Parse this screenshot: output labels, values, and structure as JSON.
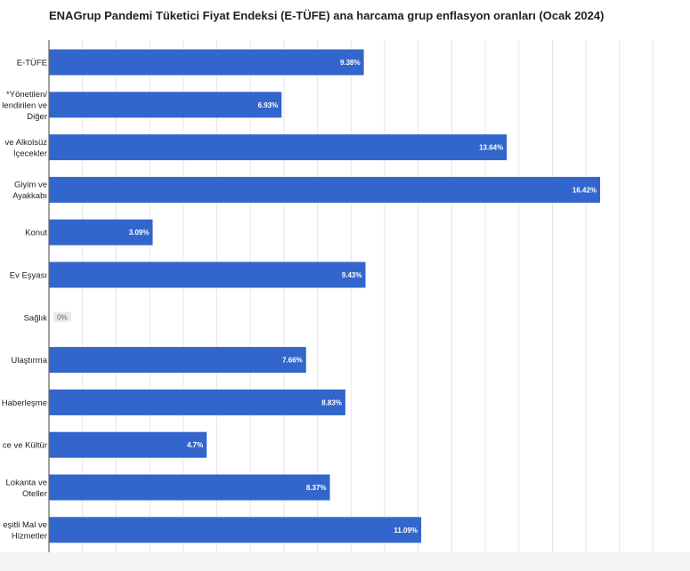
{
  "chart_data": {
    "type": "bar",
    "orientation": "horizontal",
    "title": "ENAGrup Pandemi Tüketici Fiyat Endeksi (E-TÜFE) ana harcama grup enflasyon oranları (Ocak 2024)",
    "categories": [
      [
        "E-TÜFE"
      ],
      [
        "*Yönetilen/",
        "lendirilen ve",
        "Diğer"
      ],
      [
        "ve Alkolsüz",
        "İçecekler"
      ],
      [
        "Giyim ve",
        "Ayakkabı"
      ],
      [
        "Konut"
      ],
      [
        "Ev Eşyası"
      ],
      [
        "Sağlık"
      ],
      [
        "Ulaştırma"
      ],
      [
        "Haberleşme"
      ],
      [
        "ce ve Kültür"
      ],
      [
        "Lokanta ve",
        "Oteller"
      ],
      [
        "eşitli Mal ve",
        "Hizmetler"
      ]
    ],
    "values": [
      9.38,
      6.93,
      13.64,
      16.42,
      3.09,
      9.43,
      0,
      7.66,
      8.83,
      4.7,
      8.37,
      11.09
    ],
    "data_labels": [
      "9.38%",
      "6.93%",
      "13.64%",
      "16.42%",
      "3.09%",
      "9.43%",
      "0%",
      "7.66%",
      "8.83%",
      "4.7%",
      "8.37%",
      "11.09%"
    ],
    "xlim": [
      0,
      19
    ],
    "grid": true,
    "bar_color": "#3366cc",
    "zero_label_bg": "#efe6ec"
  }
}
